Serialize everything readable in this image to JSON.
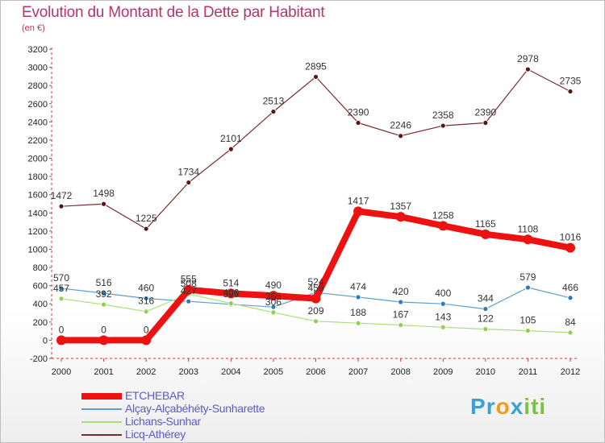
{
  "title": "Evolution du Montant de la Dette par Habitant",
  "subtitle": "(en €)",
  "logo": {
    "text": "Proxiti",
    "letters": [
      {
        "ch": "P",
        "color": "#3aa0d8"
      },
      {
        "ch": "r",
        "color": "#3aa0d8"
      },
      {
        "ch": "o",
        "color": "#f29a1e"
      },
      {
        "ch": "x",
        "color": "#3aa0d8"
      },
      {
        "ch": "i",
        "color": "#7cc242"
      },
      {
        "ch": "t",
        "color": "#7cc242"
      },
      {
        "ch": "i",
        "color": "#7cc242"
      }
    ]
  },
  "chart_data": {
    "type": "line",
    "x": [
      2000,
      2001,
      2002,
      2003,
      2004,
      2005,
      2006,
      2007,
      2008,
      2009,
      2010,
      2011,
      2012
    ],
    "ylim": [
      -200,
      3200
    ],
    "yticks": [
      -200,
      0,
      200,
      400,
      600,
      800,
      1000,
      1200,
      1400,
      1600,
      1800,
      2000,
      2200,
      2400,
      2600,
      2800,
      3000,
      3200
    ],
    "grid": false,
    "legend_position": "bottom-left",
    "series": [
      {
        "name": "Licq-Athérey",
        "color": "#7a2a2a",
        "width": 1.2,
        "marker_color": "#5a1515",
        "values": [
          1472,
          1498,
          1225,
          1734,
          2101,
          2513,
          2895,
          2390,
          2246,
          2358,
          2390,
          2978,
          2735
        ]
      },
      {
        "name": "Alçay-Alçabéhéty-Sunharette",
        "color": "#5f9fd0",
        "width": 1.2,
        "marker_color": "#2f78c0",
        "values": [
          570,
          516,
          460,
          427,
          395,
          365,
          524,
          474,
          420,
          400,
          344,
          579,
          466
        ]
      },
      {
        "name": "Lichans-Sunhar",
        "color": "#a8e07a",
        "width": 1.2,
        "marker_color": "#8fd050",
        "values": [
          457,
          392,
          316,
          508,
          406,
          306,
          209,
          188,
          167,
          143,
          122,
          105,
          84
        ]
      },
      {
        "name": "ETCHEBAR",
        "color": "#ee1111",
        "width": 8,
        "marker_color": "#ee1111",
        "values": [
          0,
          0,
          0,
          555,
          514,
          490,
          459,
          1417,
          1357,
          1258,
          1165,
          1108,
          1016
        ]
      }
    ],
    "legend": [
      "ETCHEBAR",
      "Alçay-Alçabéhéty-Sunharette",
      "Lichans-Sunhar",
      "Licq-Athérey"
    ]
  }
}
